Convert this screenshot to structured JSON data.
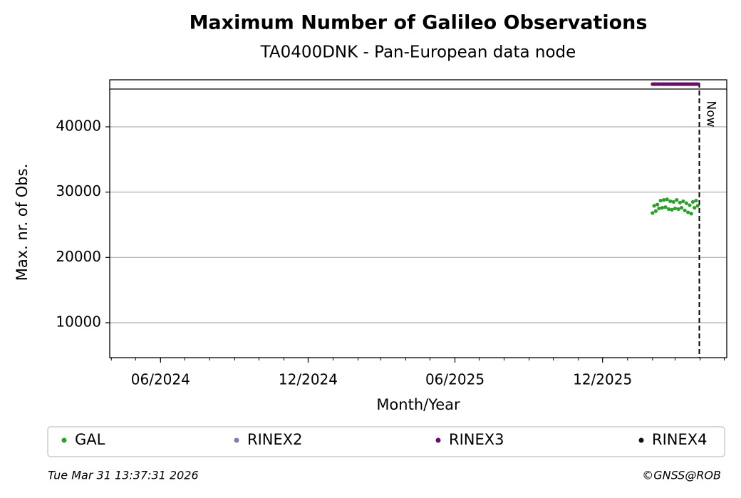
{
  "chart_data": {
    "type": "scatter",
    "title": "Maximum Number of Galileo Observations",
    "subtitle": "TA0400DNK - Pan-European data node",
    "x_label": "Month/Year",
    "y_label": "Max. nr. of Obs.",
    "xlim": [
      "2024-03-30",
      "2026-05-04"
    ],
    "xticks": [
      {
        "value": "2024-06",
        "label": "06/2024"
      },
      {
        "value": "2024-12",
        "label": "12/2024"
      },
      {
        "value": "2025-06",
        "label": "06/2025"
      },
      {
        "value": "2025-12",
        "label": "12/2025"
      }
    ],
    "ylim": [
      4650,
      47200
    ],
    "yticks": [
      10000,
      20000,
      30000,
      40000
    ],
    "grid": true,
    "now": "2026-03-31",
    "now_label": "Now",
    "series": [
      {
        "name": "GAL",
        "color": "#2ca02c",
        "x": [
          "2026-02-01",
          "2026-02-03",
          "2026-02-05",
          "2026-02-07",
          "2026-02-09",
          "2026-02-11",
          "2026-02-13",
          "2026-02-15",
          "2026-02-17",
          "2026-02-19",
          "2026-02-21",
          "2026-02-23",
          "2026-02-25",
          "2026-02-27",
          "2026-03-01",
          "2026-03-03",
          "2026-03-05",
          "2026-03-07",
          "2026-03-09",
          "2026-03-11",
          "2026-03-13",
          "2026-03-15",
          "2026-03-17",
          "2026-03-19",
          "2026-03-21",
          "2026-03-23",
          "2026-03-25",
          "2026-03-27",
          "2026-03-29"
        ],
        "values": [
          26800,
          27900,
          27100,
          28100,
          27500,
          28700,
          27600,
          28800,
          27700,
          28900,
          27400,
          28600,
          27300,
          28500,
          27500,
          28800,
          27400,
          28400,
          27600,
          28600,
          27200,
          28300,
          26900,
          28000,
          26700,
          28500,
          27600,
          28700,
          27900
        ]
      },
      {
        "name": "RINEX2",
        "color": "#7b7fb5",
        "x": [],
        "values": []
      },
      {
        "name": "RINEX3",
        "color": "#6a0d6a",
        "x": [
          "2026-02-01",
          "2026-02-03",
          "2026-02-05",
          "2026-02-07",
          "2026-02-09",
          "2026-02-11",
          "2026-02-13",
          "2026-02-15",
          "2026-02-17",
          "2026-02-19",
          "2026-02-21",
          "2026-02-23",
          "2026-02-25",
          "2026-02-27",
          "2026-03-01",
          "2026-03-03",
          "2026-03-05",
          "2026-03-07",
          "2026-03-09",
          "2026-03-11",
          "2026-03-13",
          "2026-03-15",
          "2026-03-17",
          "2026-03-19",
          "2026-03-21",
          "2026-03-23",
          "2026-03-25",
          "2026-03-27",
          "2026-03-29"
        ],
        "values": [
          46540,
          46540,
          46540,
          46540,
          46540,
          46540,
          46540,
          46540,
          46540,
          46540,
          46540,
          46540,
          46540,
          46540,
          46540,
          46540,
          46540,
          46540,
          46540,
          46540,
          46540,
          46540,
          46540,
          46540,
          46540,
          46540,
          46540,
          46540,
          46540
        ]
      },
      {
        "name": "RINEX4",
        "color": "#1a0a1a",
        "x": [],
        "values": []
      }
    ],
    "footer_left": "Tue Mar 31 13:37:31 2026",
    "footer_right": "©GNSS@ROB"
  }
}
